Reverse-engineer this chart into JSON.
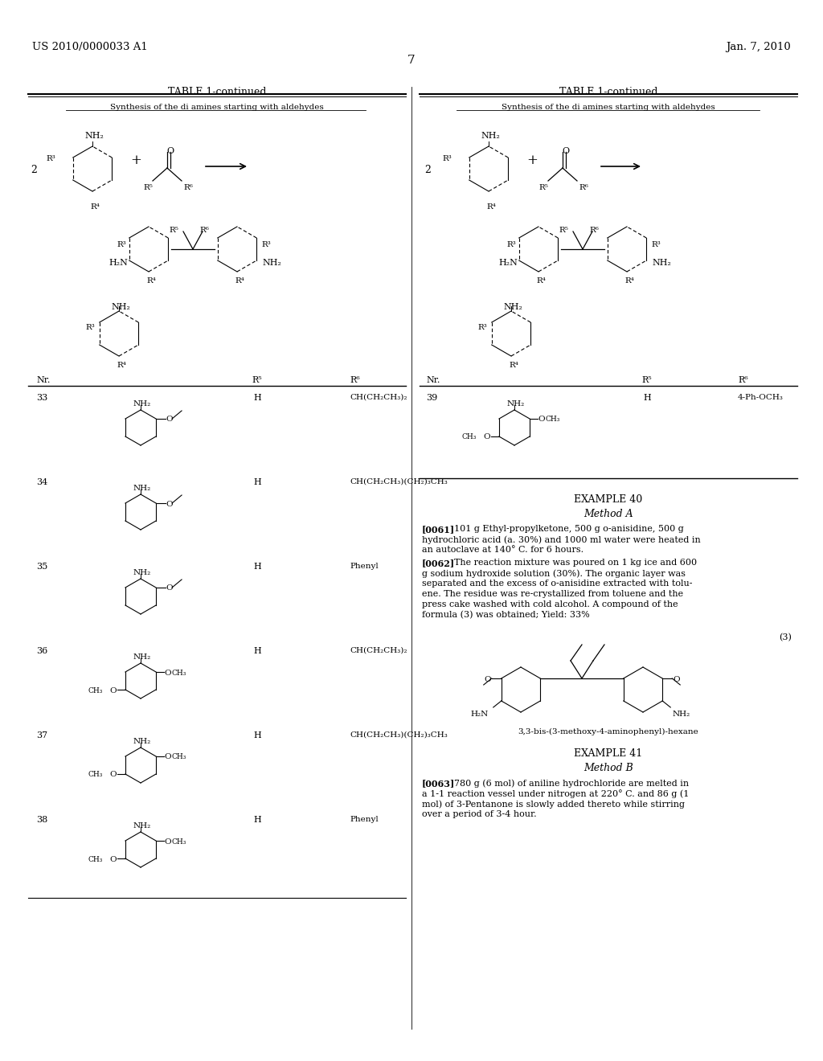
{
  "bg_color": "#ffffff",
  "header_left": "US 2010/0000033 A1",
  "header_right": "Jan. 7, 2010",
  "page_number": "7",
  "left_table_title": "TABLE 1-continued",
  "left_table_subtitle": "Synthesis of the di amines starting with aldehydes",
  "right_table_title": "TABLE 1-continued",
  "right_table_subtitle": "Synthesis of the di amines starting with aldehydes",
  "col_nr": "Nr.",
  "col_r5": "R⁵",
  "col_r6": "R⁶",
  "rows_left": [
    {
      "nr": "33",
      "r5": "H",
      "r6": "CH(CH₂CH₃)₂",
      "type": "OEt"
    },
    {
      "nr": "34",
      "r5": "H",
      "r6": "CH(CH₂CH₃)(CH₂)₃CH₃",
      "type": "OEt"
    },
    {
      "nr": "35",
      "r5": "H",
      "r6": "Phenyl",
      "type": "OEt"
    },
    {
      "nr": "36",
      "r5": "H",
      "r6": "CH(CH₂CH₃)₂",
      "type": "OMe2"
    },
    {
      "nr": "37",
      "r5": "H",
      "r6": "CH(CH₂CH₃)(CH₂)₃CH₃",
      "type": "OMe2"
    },
    {
      "nr": "38",
      "r5": "H",
      "r6": "Phenyl",
      "type": "OMe2"
    }
  ],
  "row_39": {
    "nr": "39",
    "r5": "H",
    "r6": "4-Ph-OCH₃",
    "type": "OMe2"
  },
  "example40_title": "EXAMPLE 40",
  "example40_method": "Method A",
  "para_0061": "[0061]    101 g Ethyl-propylketone, 500 g o-anisidine, 500 g\nhydrochloric acid (a. 30%) and 1000 ml water were heated in\nan autoclave at 140° C. for 6 hours.",
  "para_0062": "[0062]    The reaction mixture was poured on 1 kg ice and 600\ng sodium hydroxide solution (30%). The organic layer was\nseparated and the excess of o-anisidine extracted with tolu-\nene. The residue was re-crystallized from toluene and the\npress cake washed with cold alcohol. A compound of the\nformula (3) was obtained; Yield: 33%",
  "formula3_label": "(3)",
  "formula3_name": "3,3-bis-(3-methoxy-4-aminophenyl)-hexane",
  "example41_title": "EXAMPLE 41",
  "example41_method": "Method B",
  "para_0063": "[0063]    780 g (6 mol) of aniline hydrochloride are melted in\na 1-1 reaction vessel under nitrogen at 220° C. and 86 g (1\nmol) of 3-Pentanone is slowly added thereto while stirring\nover a period of 3-4 hour."
}
